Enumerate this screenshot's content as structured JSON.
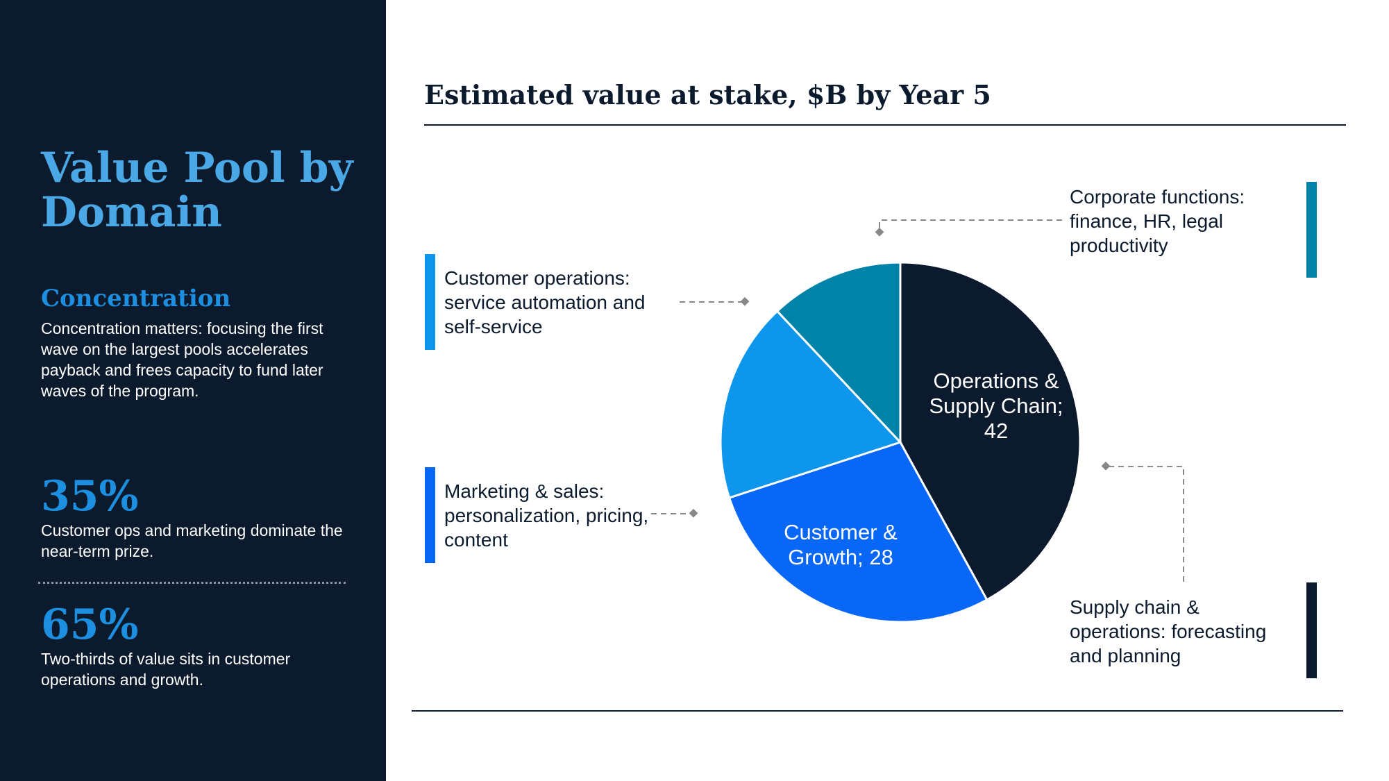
{
  "sidebar": {
    "title": "Value Pool by Domain",
    "heading": "Concentration",
    "body": "Concentration matters: focusing the first wave on the largest pools accelerates payback and frees capacity to fund later waves of the program.",
    "stats": [
      {
        "value": "35%",
        "text": "Customer ops and marketing dominate the near-term prize."
      },
      {
        "value": "65%",
        "text": "Two-thirds of value sits in customer operations and growth."
      }
    ]
  },
  "callouts": {
    "corporate": {
      "text": "Corporate functions: finance, HR, legal productivity",
      "color": "#0083a8"
    },
    "customer_ops": {
      "text": "Customer operations: service automation and self-service",
      "color": "#0e96ec"
    },
    "marketing": {
      "text": "Marketing & sales: personalization, pricing, content",
      "color": "#0867f6"
    },
    "supply_chain": {
      "text": "Supply chain & operations: forecasting and planning",
      "color": "#0b1a2c"
    }
  },
  "chart_data": {
    "type": "pie",
    "title": "Estimated value at stake, $B by Year 5",
    "slices": [
      {
        "label": "Operations & Supply Chain",
        "value": 42,
        "display": [
          "Operations &",
          "Supply Chain;",
          "42"
        ],
        "color": "#0b1a2c"
      },
      {
        "label": "Customer & Growth",
        "value": 28,
        "display": [
          "Customer &",
          "Growth; 28"
        ],
        "color": "#0867f6"
      },
      {
        "label": "",
        "value": 18,
        "display": [],
        "color": "#0e96ec"
      },
      {
        "label": "",
        "value": 12,
        "display": [],
        "color": "#0083a8"
      }
    ],
    "start_angle": "12 o'clock",
    "direction": "clockwise"
  }
}
